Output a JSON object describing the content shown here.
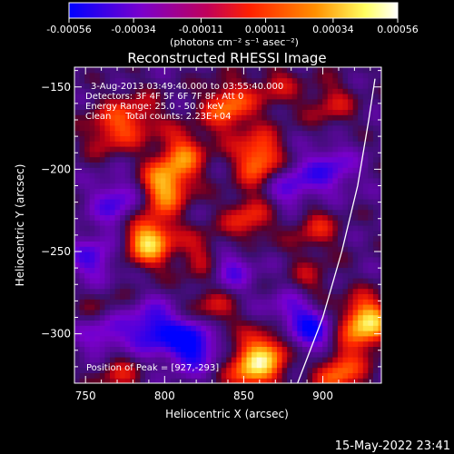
{
  "colorbar": {
    "tick_labels": [
      "-0.00056",
      "-0.00034",
      "-0.00011",
      "0.00011",
      "0.00034",
      "0.00056"
    ],
    "tick_values": [
      -0.00056,
      -0.00034,
      -0.00011,
      0.00011,
      0.00034,
      0.00056
    ],
    "range": [
      -0.00056,
      0.00056
    ],
    "units": "(photons cm⁻² s⁻¹ asec⁻²)",
    "colors": [
      "#0000ff",
      "#7a00cc",
      "#c0005a",
      "#ff2000",
      "#ff9000",
      "#ffff60",
      "#ffffff"
    ]
  },
  "chart_data": {
    "type": "heatmap",
    "title": "Reconstructed RHESSI Image",
    "xlabel": "Heliocentric X (arcsec)",
    "ylabel": "Heliocentric Y (arcsec)",
    "xlim": [
      743,
      937
    ],
    "ylim": [
      -330,
      -138
    ],
    "xticks": [
      750,
      800,
      850,
      900
    ],
    "xtick_labels": [
      "750",
      "800",
      "850",
      "900"
    ],
    "yticks": [
      -150,
      -200,
      -250,
      -300
    ],
    "ytick_labels": [
      "−150",
      "−200",
      "−250",
      "−300"
    ],
    "annotations": [
      "3-Aug-2013 03:49:40.000 to 03:55:40.000",
      "Detectors: 3F 4F 5F 6F 7F 8F, Att 0",
      "Energy Range: 25.0 - 50.0 keV",
      "Clean     Total counts: 2.23E+04"
    ],
    "peak_label": "Position of Peak = [927,-293]",
    "peak_position": [
      927,
      -293
    ],
    "sources": [
      {
        "x": 790,
        "y": -243,
        "intensity": 0.00056
      },
      {
        "x": 800,
        "y": -210,
        "intensity": 0.00048
      },
      {
        "x": 812,
        "y": -190,
        "intensity": 0.00034
      },
      {
        "x": 840,
        "y": -162,
        "intensity": 0.0004
      },
      {
        "x": 860,
        "y": -193,
        "intensity": 0.00046
      },
      {
        "x": 853,
        "y": -230,
        "intensity": 0.0003
      },
      {
        "x": 825,
        "y": -252,
        "intensity": 0.00026
      },
      {
        "x": 895,
        "y": -235,
        "intensity": 0.00024
      },
      {
        "x": 764,
        "y": -176,
        "intensity": 0.00028
      },
      {
        "x": 783,
        "y": -168,
        "intensity": 0.00026
      },
      {
        "x": 830,
        "y": -285,
        "intensity": 0.00028
      },
      {
        "x": 855,
        "y": -320,
        "intensity": 0.0005
      },
      {
        "x": 870,
        "y": -308,
        "intensity": 0.00032
      },
      {
        "x": 927,
        "y": -293,
        "intensity": 0.0006
      },
      {
        "x": 910,
        "y": -323,
        "intensity": 0.0004
      },
      {
        "x": 770,
        "y": -322,
        "intensity": 0.00024
      },
      {
        "x": 905,
        "y": -160,
        "intensity": 0.00022
      },
      {
        "x": 890,
        "y": -270,
        "intensity": 0.0002
      },
      {
        "x": 760,
        "y": -285,
        "intensity": 0.00018
      },
      {
        "x": 870,
        "y": -150,
        "intensity": 0.0002
      }
    ],
    "negative_regions": [
      {
        "x": 770,
        "y": -220,
        "intensity": -0.0003
      },
      {
        "x": 755,
        "y": -255,
        "intensity": -0.00028
      },
      {
        "x": 762,
        "y": -300,
        "intensity": -0.00034
      },
      {
        "x": 792,
        "y": -297,
        "intensity": -0.0004
      },
      {
        "x": 818,
        "y": -305,
        "intensity": -0.00052
      },
      {
        "x": 840,
        "y": -260,
        "intensity": -0.0003
      },
      {
        "x": 880,
        "y": -210,
        "intensity": -0.00028
      },
      {
        "x": 892,
        "y": -300,
        "intensity": -0.00036
      },
      {
        "x": 905,
        "y": -200,
        "intensity": -0.00028
      },
      {
        "x": 880,
        "y": -285,
        "intensity": -0.00026
      }
    ],
    "limb_curve": [
      [
        884,
        -330
      ],
      [
        900,
        -290
      ],
      [
        912,
        -250
      ],
      [
        922,
        -210
      ],
      [
        929,
        -170
      ],
      [
        933,
        -145
      ]
    ],
    "colormap": "red temperature",
    "grid": false
  },
  "footer": {
    "timestamp": "15-May-2022 23:41"
  }
}
